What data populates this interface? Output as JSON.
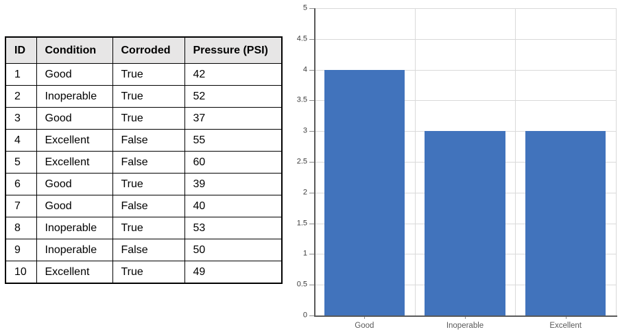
{
  "table": {
    "columns": [
      "ID",
      "Condition",
      "Corroded",
      "Pressure (PSI)"
    ],
    "rows": [
      [
        "1",
        "Good",
        "True",
        "42"
      ],
      [
        "2",
        "Inoperable",
        "True",
        "52"
      ],
      [
        "3",
        "Good",
        "True",
        "37"
      ],
      [
        "4",
        "Excellent",
        "False",
        "55"
      ],
      [
        "5",
        "Excellent",
        "False",
        "60"
      ],
      [
        "6",
        "Good",
        "True",
        "39"
      ],
      [
        "7",
        "Good",
        "False",
        "40"
      ],
      [
        "8",
        "Inoperable",
        "True",
        "53"
      ],
      [
        "9",
        "Inoperable",
        "False",
        "50"
      ],
      [
        "10",
        "Excellent",
        "True",
        "49"
      ]
    ],
    "header_bg": "#E7E6E6",
    "border_color": "#000000",
    "text_color": "#000000"
  },
  "chart_data": {
    "type": "bar",
    "title": "",
    "categories": [
      "Good",
      "Inoperable",
      "Excellent"
    ],
    "values": [
      4,
      3,
      3
    ],
    "xlabel": "",
    "ylabel": "",
    "ylim": [
      0,
      5
    ],
    "ytick_step": 0.5,
    "yticks": [
      "0",
      "0.5",
      "1",
      "1.5",
      "2",
      "2.5",
      "3",
      "3.5",
      "4",
      "4.5",
      "5"
    ],
    "grid": true,
    "legend": false,
    "bar_color": "#4173BC",
    "grid_color": "#D9D9D9",
    "axis_color": "#595959",
    "tick_color": "#8C8C8C",
    "ytick_label_color": "#3B3B3B",
    "xtick_label_color": "#595959"
  }
}
